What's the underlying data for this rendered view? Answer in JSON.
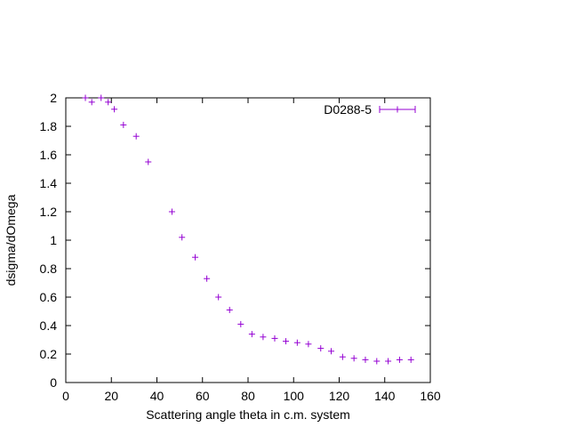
{
  "chart_data": {
    "type": "scatter",
    "xlabel": "Scattering angle theta in c.m. system",
    "ylabel": "dsigma/dOmega",
    "xlim": [
      0,
      160
    ],
    "ylim": [
      0,
      2
    ],
    "xticks": [
      0,
      20,
      40,
      60,
      80,
      100,
      120,
      140,
      160
    ],
    "yticks": [
      0,
      0.2,
      0.4,
      0.6,
      0.8,
      1,
      1.2,
      1.4,
      1.6,
      1.8,
      2
    ],
    "legend_position": "top-right",
    "grid": false,
    "series": [
      {
        "name": "D0288-5",
        "color": "#9400d3",
        "marker": "plus",
        "x": [
          8.6,
          11.4,
          15.5,
          18.6,
          21.3,
          25.3,
          30.9,
          36.2,
          46.6,
          51.0,
          56.8,
          61.9,
          67.0,
          71.9,
          76.8,
          81.7,
          86.6,
          91.7,
          96.6,
          101.6,
          106.5,
          111.9,
          116.5,
          121.5,
          126.5,
          131.5,
          136.5,
          141.5,
          146.5,
          151.5
        ],
        "y": [
          2.0,
          1.97,
          2.0,
          1.97,
          1.92,
          1.81,
          1.73,
          1.55,
          1.2,
          1.02,
          0.88,
          0.73,
          0.6,
          0.51,
          0.41,
          0.34,
          0.32,
          0.31,
          0.29,
          0.28,
          0.27,
          0.24,
          0.22,
          0.18,
          0.17,
          0.16,
          0.15,
          0.15,
          0.16,
          0.16
        ]
      }
    ]
  }
}
